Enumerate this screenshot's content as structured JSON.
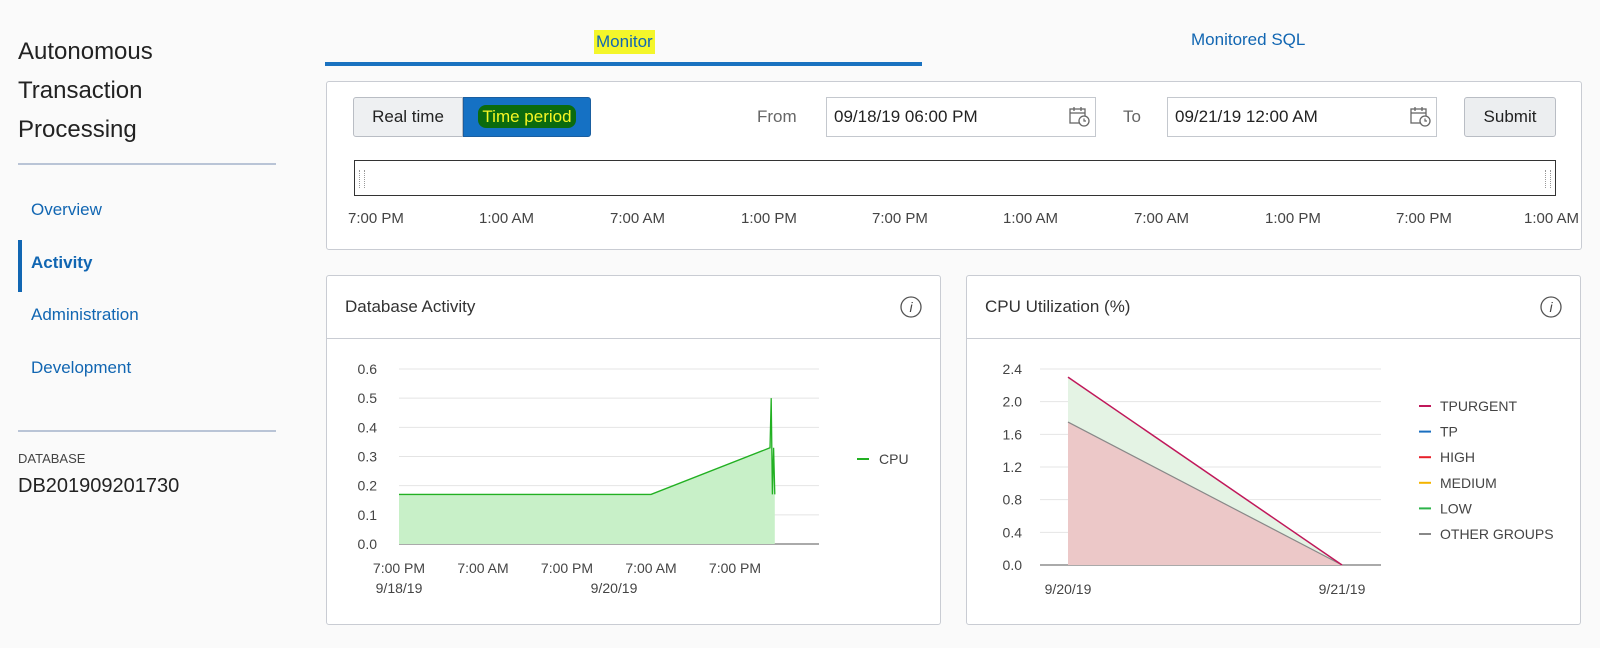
{
  "sidebar": {
    "title_lines": [
      "Autonomous",
      "Transaction",
      "Processing"
    ],
    "nav": [
      {
        "label": "Overview",
        "active": false
      },
      {
        "label": "Activity",
        "active": true
      },
      {
        "label": "Administration",
        "active": false
      },
      {
        "label": "Development",
        "active": false
      }
    ],
    "database_label": "DATABASE",
    "database_name": "DB201909201730"
  },
  "tabs": [
    {
      "label": "Monitor",
      "active": true
    },
    {
      "label": "Monitored SQL",
      "active": false
    }
  ],
  "time_controls": {
    "mode_buttons": [
      "Real time",
      "Time period"
    ],
    "selected_mode": "Time period",
    "from_label": "From",
    "from_value": "09/18/19 06:00 PM",
    "to_label": "To",
    "to_value": "09/21/19 12:00 AM",
    "submit_label": "Submit",
    "timeline_ticks": [
      "7:00 PM",
      "1:00 AM",
      "7:00 AM",
      "1:00 PM",
      "7:00 PM",
      "1:00 AM",
      "7:00 AM",
      "1:00 PM",
      "7:00 PM",
      "1:00 AM"
    ]
  },
  "icons": {
    "calendar": "calendar-icon",
    "info": "info-icon"
  },
  "colors": {
    "accent": "#1166b2",
    "cpu_line": "#22b022",
    "cpu_fill": "#c8f0c8",
    "tpurgent": "#c0185a",
    "tp": "#1a6fc0",
    "high": "#e8202a",
    "medium": "#f4b400",
    "low": "#2cb34a",
    "other": "#888888"
  },
  "chart_data": [
    {
      "type": "area",
      "title": "Database Activity",
      "x": [
        "2019-09-18 19:00",
        "2019-09-20 07:00",
        "2019-09-21 00:00",
        "2019-09-21 00:05",
        "2019-09-21 00:10",
        "2019-09-21 00:15",
        "2019-09-21 00:20"
      ],
      "series": [
        {
          "name": "CPU",
          "values": [
            0.17,
            0.17,
            0.33,
            0.5,
            0.17,
            0.33,
            0.17
          ]
        }
      ],
      "yticks": [
        "0.0",
        "0.1",
        "0.2",
        "0.3",
        "0.4",
        "0.5",
        "0.6"
      ],
      "ylim": [
        0,
        0.6
      ],
      "xticks": [
        {
          "line1": "7:00 PM",
          "line2": "9/18/19"
        },
        {
          "line1": "7:00 AM",
          "line2": ""
        },
        {
          "line1": "7:00 PM",
          "line2": "9/20/19"
        },
        {
          "line1": "7:00 AM",
          "line2": ""
        },
        {
          "line1": "7:00 PM",
          "line2": ""
        }
      ],
      "legend": "right"
    },
    {
      "type": "area",
      "title": "CPU Utilization (%)",
      "x": [
        "9/20/19",
        "9/21/19"
      ],
      "series": [
        {
          "name": "TPURGENT",
          "values": [
            2.3,
            0.0
          ]
        },
        {
          "name": "TP",
          "values": [
            0.0,
            0.0
          ]
        },
        {
          "name": "HIGH",
          "values": [
            0.0,
            0.0
          ]
        },
        {
          "name": "MEDIUM",
          "values": [
            0.0,
            0.0
          ]
        },
        {
          "name": "LOW",
          "values": [
            0.55,
            0.0
          ]
        },
        {
          "name": "OTHER GROUPS",
          "values": [
            1.75,
            0.0
          ]
        }
      ],
      "yticks": [
        "0.0",
        "0.4",
        "0.8",
        "1.2",
        "1.6",
        "2.0",
        "2.4"
      ],
      "ylim": [
        0,
        2.4
      ],
      "xticks": [
        "9/20/19",
        "9/21/19"
      ],
      "legend": "right"
    }
  ]
}
